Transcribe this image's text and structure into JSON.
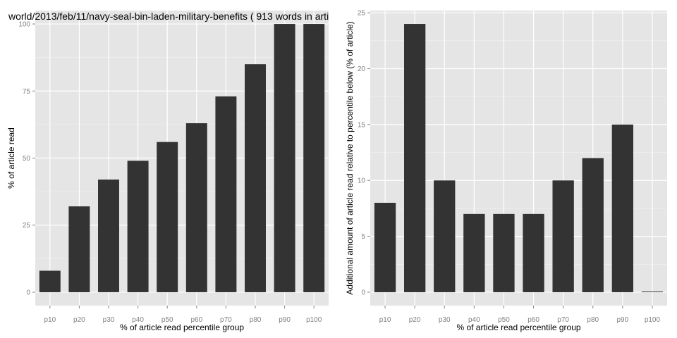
{
  "colors": {
    "panel_bg": "#e5e5e5",
    "grid_major": "#ffffff",
    "grid_minor": "#f2f2f2",
    "bar": "#333333",
    "tick_text": "#7f7f7f"
  },
  "chart_data": [
    {
      "type": "bar",
      "title": "world/2013/feb/11/navy-seal-bin-laden-military-benefits ( 913 words in arti",
      "xlabel": "% of article read percentile group",
      "ylabel": "% of article read",
      "categories": [
        "p10",
        "p20",
        "p30",
        "p40",
        "p50",
        "p60",
        "p70",
        "p80",
        "p90",
        "p100"
      ],
      "values": [
        8,
        32,
        42,
        49,
        56,
        63,
        73,
        85,
        100,
        100
      ],
      "yticks": [
        0,
        25,
        50,
        75,
        100
      ],
      "ylim": [
        -5,
        105
      ],
      "grid": true
    },
    {
      "type": "bar",
      "title": "",
      "xlabel": "% of article read percentile group",
      "ylabel": "Additional amount of article read relative to percentile below (% of article)",
      "categories": [
        "p10",
        "p20",
        "p30",
        "p40",
        "p50",
        "p60",
        "p70",
        "p80",
        "p90",
        "p100"
      ],
      "values": [
        8,
        24,
        10,
        7,
        7,
        7,
        10,
        12,
        15,
        0
      ],
      "yticks": [
        0,
        5,
        10,
        15,
        20,
        25
      ],
      "ylim": [
        -1.2,
        25.2
      ],
      "grid": true
    }
  ]
}
